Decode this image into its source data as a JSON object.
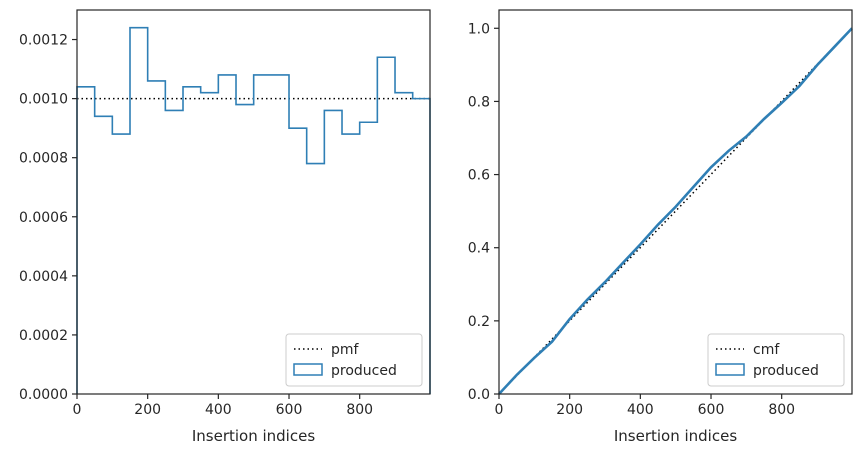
{
  "chart_data": [
    {
      "type": "step",
      "xlabel": "Insertion indices",
      "ylabel": "",
      "xlim": [
        0,
        999
      ],
      "ylim": [
        0,
        0.0013
      ],
      "xticks": [
        0,
        200,
        400,
        600,
        800
      ],
      "xtick_labels": [
        "0",
        "200",
        "400",
        "600",
        "800"
      ],
      "yticks": [
        0,
        0.0002,
        0.0004,
        0.0006,
        0.0008,
        0.001,
        0.0012
      ],
      "ytick_labels": [
        "0.0000",
        "0.0002",
        "0.0004",
        "0.0006",
        "0.0008",
        "0.0010",
        "0.0012"
      ],
      "grid": false,
      "legend_position": "lower-right",
      "series": [
        {
          "name": "pmf",
          "style": "dotted",
          "color": "#000000",
          "x": [
            0,
            999
          ],
          "y": [
            0.001,
            0.001
          ]
        },
        {
          "name": "produced",
          "style": "step-histogram",
          "color": "#2f7fb5",
          "bin_edges": [
            0,
            50,
            100,
            150,
            200,
            250,
            300,
            350,
            400,
            450,
            500,
            550,
            600,
            650,
            700,
            750,
            800,
            850,
            900,
            950,
            999
          ],
          "values": [
            0.00104,
            0.00094,
            0.00088,
            0.00124,
            0.00106,
            0.00096,
            0.00104,
            0.00102,
            0.00108,
            0.00098,
            0.00108,
            0.00108,
            0.0009,
            0.00078,
            0.00096,
            0.00088,
            0.00092,
            0.00114,
            0.00102,
            0.001
          ]
        }
      ]
    },
    {
      "type": "line",
      "xlabel": "Insertion indices",
      "ylabel": "",
      "xlim": [
        0,
        999
      ],
      "ylim": [
        0,
        1.05
      ],
      "xticks": [
        0,
        200,
        400,
        600,
        800
      ],
      "xtick_labels": [
        "0",
        "200",
        "400",
        "600",
        "800"
      ],
      "yticks": [
        0,
        0.2,
        0.4,
        0.6,
        0.8,
        1.0
      ],
      "ytick_labels": [
        "0.0",
        "0.2",
        "0.4",
        "0.6",
        "0.8",
        "1.0"
      ],
      "grid": false,
      "legend_position": "lower-right",
      "series": [
        {
          "name": "cmf",
          "style": "dotted",
          "color": "#000000",
          "x": [
            0,
            999
          ],
          "y": [
            0,
            1.0
          ]
        },
        {
          "name": "produced",
          "style": "solid",
          "color": "#2f7fb5",
          "x": [
            0,
            50,
            100,
            150,
            200,
            250,
            300,
            350,
            400,
            450,
            500,
            550,
            600,
            650,
            700,
            750,
            800,
            850,
            900,
            950,
            999
          ],
          "y": [
            0,
            0.052,
            0.099,
            0.143,
            0.205,
            0.258,
            0.306,
            0.358,
            0.409,
            0.463,
            0.512,
            0.566,
            0.62,
            0.665,
            0.704,
            0.752,
            0.796,
            0.842,
            0.899,
            0.95,
            1.0
          ]
        }
      ]
    }
  ]
}
